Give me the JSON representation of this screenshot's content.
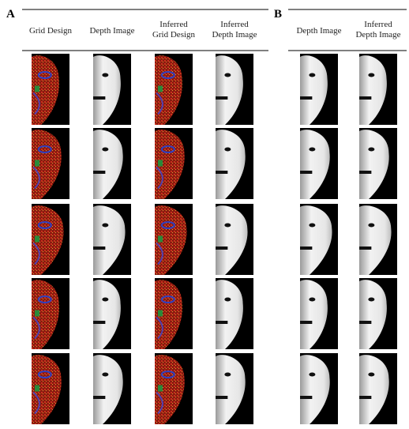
{
  "panels": [
    {
      "label": "A",
      "columns": [
        [
          "Grid Design"
        ],
        [
          "Depth Image"
        ],
        [
          "Inferred",
          "Grid Design"
        ],
        [
          "Inferred",
          "Depth Image"
        ]
      ]
    },
    {
      "label": "B",
      "columns": [
        [
          "Depth Image"
        ],
        [
          "Inferred",
          "Depth Image"
        ]
      ]
    }
  ]
}
